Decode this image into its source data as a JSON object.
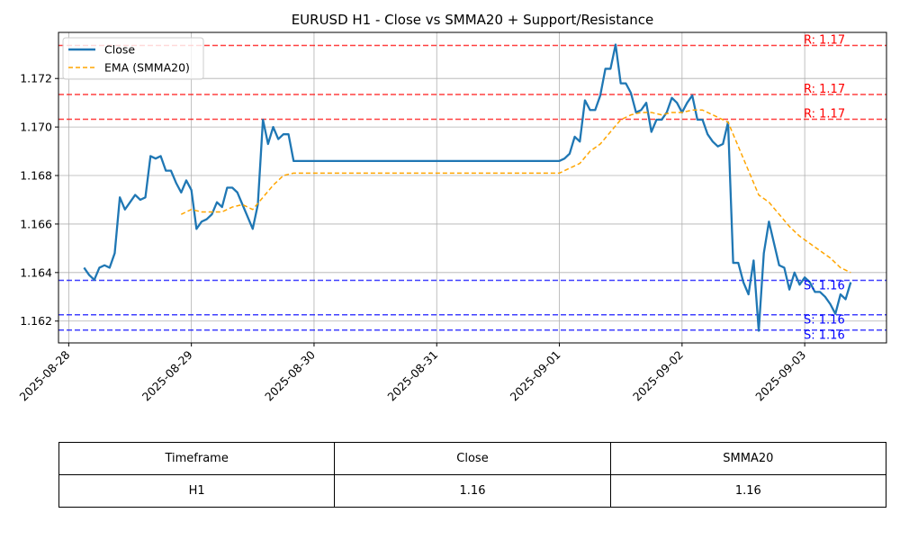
{
  "chart_data": {
    "type": "line",
    "title": "EURUSD H1 - Close vs SMMA20 + Support/Resistance",
    "xlabel": "",
    "ylabel": "",
    "x_ticks": [
      "2025-08-28",
      "2025-08-29",
      "2025-08-30",
      "2025-08-31",
      "2025-09-01",
      "2025-09-02",
      "2025-09-03"
    ],
    "y_ticks": [
      "1.162",
      "1.164",
      "1.166",
      "1.168",
      "1.170",
      "1.172"
    ],
    "xlim": [
      "2025-08-27T22:00",
      "2025-09-03T16:00"
    ],
    "ylim": [
      1.1611,
      1.1739
    ],
    "grid": true,
    "legend_position": "upper-left",
    "colors": {
      "close": "#1f77b4",
      "smma": "#ffa500",
      "resistance": "#ff0000",
      "support": "#0000ff",
      "grid": "#b0b0b0"
    },
    "series": [
      {
        "name": "Close",
        "style": "solid",
        "points": [
          [
            "2025-08-28T03:00",
            1.1642
          ],
          [
            "2025-08-28T04:00",
            1.1639
          ],
          [
            "2025-08-28T05:00",
            1.1637
          ],
          [
            "2025-08-28T06:00",
            1.1642
          ],
          [
            "2025-08-28T07:00",
            1.1643
          ],
          [
            "2025-08-28T08:00",
            1.1642
          ],
          [
            "2025-08-28T09:00",
            1.1648
          ],
          [
            "2025-08-28T10:00",
            1.1671
          ],
          [
            "2025-08-28T11:00",
            1.1666
          ],
          [
            "2025-08-28T12:00",
            1.1669
          ],
          [
            "2025-08-28T13:00",
            1.1672
          ],
          [
            "2025-08-28T14:00",
            1.167
          ],
          [
            "2025-08-28T15:00",
            1.1671
          ],
          [
            "2025-08-28T16:00",
            1.1688
          ],
          [
            "2025-08-28T17:00",
            1.1687
          ],
          [
            "2025-08-28T18:00",
            1.1688
          ],
          [
            "2025-08-28T19:00",
            1.1682
          ],
          [
            "2025-08-28T20:00",
            1.1682
          ],
          [
            "2025-08-28T21:00",
            1.1677
          ],
          [
            "2025-08-28T22:00",
            1.1673
          ],
          [
            "2025-08-28T23:00",
            1.1678
          ],
          [
            "2025-08-29T00:00",
            1.1674
          ],
          [
            "2025-08-29T01:00",
            1.1658
          ],
          [
            "2025-08-29T02:00",
            1.1661
          ],
          [
            "2025-08-29T03:00",
            1.1662
          ],
          [
            "2025-08-29T04:00",
            1.1664
          ],
          [
            "2025-08-29T05:00",
            1.1669
          ],
          [
            "2025-08-29T06:00",
            1.1667
          ],
          [
            "2025-08-29T07:00",
            1.1675
          ],
          [
            "2025-08-29T08:00",
            1.1675
          ],
          [
            "2025-08-29T09:00",
            1.1673
          ],
          [
            "2025-08-29T10:00",
            1.1668
          ],
          [
            "2025-08-29T11:00",
            1.1663
          ],
          [
            "2025-08-29T12:00",
            1.1658
          ],
          [
            "2025-08-29T13:00",
            1.1668
          ],
          [
            "2025-08-29T14:00",
            1.1703
          ],
          [
            "2025-08-29T15:00",
            1.1693
          ],
          [
            "2025-08-29T16:00",
            1.17
          ],
          [
            "2025-08-29T17:00",
            1.1695
          ],
          [
            "2025-08-29T18:00",
            1.1697
          ],
          [
            "2025-08-29T19:00",
            1.1697
          ],
          [
            "2025-08-29T20:00",
            1.1686
          ],
          [
            "2025-09-01T00:00",
            1.1686
          ],
          [
            "2025-09-01T01:00",
            1.1687
          ],
          [
            "2025-09-01T02:00",
            1.1689
          ],
          [
            "2025-09-01T03:00",
            1.1696
          ],
          [
            "2025-09-01T04:00",
            1.1694
          ],
          [
            "2025-09-01T05:00",
            1.1711
          ],
          [
            "2025-09-01T06:00",
            1.1707
          ],
          [
            "2025-09-01T07:00",
            1.1707
          ],
          [
            "2025-09-01T08:00",
            1.1713
          ],
          [
            "2025-09-01T09:00",
            1.1724
          ],
          [
            "2025-09-01T10:00",
            1.1724
          ],
          [
            "2025-09-01T11:00",
            1.1734
          ],
          [
            "2025-09-01T12:00",
            1.1718
          ],
          [
            "2025-09-01T13:00",
            1.1718
          ],
          [
            "2025-09-01T14:00",
            1.1714
          ],
          [
            "2025-09-01T15:00",
            1.1706
          ],
          [
            "2025-09-01T16:00",
            1.1707
          ],
          [
            "2025-09-01T17:00",
            1.171
          ],
          [
            "2025-09-01T18:00",
            1.1698
          ],
          [
            "2025-09-01T19:00",
            1.1703
          ],
          [
            "2025-09-01T20:00",
            1.1703
          ],
          [
            "2025-09-01T21:00",
            1.1706
          ],
          [
            "2025-09-01T22:00",
            1.1712
          ],
          [
            "2025-09-01T23:00",
            1.171
          ],
          [
            "2025-09-02T00:00",
            1.1706
          ],
          [
            "2025-09-02T01:00",
            1.171
          ],
          [
            "2025-09-02T02:00",
            1.1713
          ],
          [
            "2025-09-02T03:00",
            1.1703
          ],
          [
            "2025-09-02T04:00",
            1.1703
          ],
          [
            "2025-09-02T05:00",
            1.1697
          ],
          [
            "2025-09-02T06:00",
            1.1694
          ],
          [
            "2025-09-02T07:00",
            1.1692
          ],
          [
            "2025-09-02T08:00",
            1.1693
          ],
          [
            "2025-09-02T09:00",
            1.1702
          ],
          [
            "2025-09-02T10:00",
            1.1644
          ],
          [
            "2025-09-02T11:00",
            1.1644
          ],
          [
            "2025-09-02T12:00",
            1.1636
          ],
          [
            "2025-09-02T13:00",
            1.1631
          ],
          [
            "2025-09-02T14:00",
            1.1645
          ],
          [
            "2025-09-02T15:00",
            1.1616
          ],
          [
            "2025-09-02T16:00",
            1.1648
          ],
          [
            "2025-09-02T17:00",
            1.1661
          ],
          [
            "2025-09-02T18:00",
            1.1652
          ],
          [
            "2025-09-02T19:00",
            1.1643
          ],
          [
            "2025-09-02T20:00",
            1.1642
          ],
          [
            "2025-09-02T21:00",
            1.1633
          ],
          [
            "2025-09-02T22:00",
            1.164
          ],
          [
            "2025-09-02T23:00",
            1.1635
          ],
          [
            "2025-09-03T00:00",
            1.1638
          ],
          [
            "2025-09-03T01:00",
            1.1636
          ],
          [
            "2025-09-03T02:00",
            1.1632
          ],
          [
            "2025-09-03T03:00",
            1.1632
          ],
          [
            "2025-09-03T04:00",
            1.163
          ],
          [
            "2025-09-03T05:00",
            1.1627
          ],
          [
            "2025-09-03T06:00",
            1.1623
          ],
          [
            "2025-09-03T07:00",
            1.1631
          ],
          [
            "2025-09-03T08:00",
            1.1629
          ],
          [
            "2025-09-03T09:00",
            1.1636
          ]
        ]
      },
      {
        "name": "EMA (SMMA20)",
        "style": "dashed",
        "points": [
          [
            "2025-08-28T22:00",
            1.1664
          ],
          [
            "2025-08-29T00:00",
            1.1666
          ],
          [
            "2025-08-29T02:00",
            1.1665
          ],
          [
            "2025-08-29T04:00",
            1.1665
          ],
          [
            "2025-08-29T06:00",
            1.1665
          ],
          [
            "2025-08-29T08:00",
            1.1667
          ],
          [
            "2025-08-29T10:00",
            1.1668
          ],
          [
            "2025-08-29T12:00",
            1.1666
          ],
          [
            "2025-08-29T14:00",
            1.1671
          ],
          [
            "2025-08-29T16:00",
            1.1676
          ],
          [
            "2025-08-29T18:00",
            1.168
          ],
          [
            "2025-08-29T20:00",
            1.1681
          ],
          [
            "2025-09-01T00:00",
            1.1681
          ],
          [
            "2025-09-01T02:00",
            1.1683
          ],
          [
            "2025-09-01T04:00",
            1.1685
          ],
          [
            "2025-09-01T06:00",
            1.169
          ],
          [
            "2025-09-01T08:00",
            1.1693
          ],
          [
            "2025-09-01T10:00",
            1.1698
          ],
          [
            "2025-09-01T12:00",
            1.1703
          ],
          [
            "2025-09-01T14:00",
            1.1705
          ],
          [
            "2025-09-01T16:00",
            1.1706
          ],
          [
            "2025-09-01T18:00",
            1.1706
          ],
          [
            "2025-09-01T20:00",
            1.1705
          ],
          [
            "2025-09-01T22:00",
            1.1706
          ],
          [
            "2025-09-02T00:00",
            1.1706
          ],
          [
            "2025-09-02T02:00",
            1.1707
          ],
          [
            "2025-09-02T04:00",
            1.1707
          ],
          [
            "2025-09-02T06:00",
            1.1705
          ],
          [
            "2025-09-02T08:00",
            1.1703
          ],
          [
            "2025-09-02T09:00",
            1.1702
          ],
          [
            "2025-09-02T11:00",
            1.1692
          ],
          [
            "2025-09-02T13:00",
            1.1682
          ],
          [
            "2025-09-02T15:00",
            1.1672
          ],
          [
            "2025-09-02T17:00",
            1.1669
          ],
          [
            "2025-09-02T19:00",
            1.1664
          ],
          [
            "2025-09-02T21:00",
            1.1659
          ],
          [
            "2025-09-02T23:00",
            1.1655
          ],
          [
            "2025-09-03T01:00",
            1.1652
          ],
          [
            "2025-09-03T03:00",
            1.1649
          ],
          [
            "2025-09-03T05:00",
            1.1646
          ],
          [
            "2025-09-03T07:00",
            1.1642
          ],
          [
            "2025-09-03T09:00",
            1.164
          ]
        ]
      }
    ],
    "resistance_lines": [
      {
        "value": 1.17336,
        "label": "R: 1.17"
      },
      {
        "value": 1.17134,
        "label": "R: 1.17"
      },
      {
        "value": 1.17032,
        "label": "R: 1.17"
      }
    ],
    "support_lines": [
      {
        "value": 1.16368,
        "label": "S: 1.16"
      },
      {
        "value": 1.16226,
        "label": "S: 1.16"
      },
      {
        "value": 1.16163,
        "label": "S: 1.16"
      }
    ]
  },
  "table": {
    "headers": [
      "Timeframe",
      "Close",
      "SMMA20"
    ],
    "rows": [
      [
        "H1",
        "1.16",
        "1.16"
      ]
    ]
  }
}
